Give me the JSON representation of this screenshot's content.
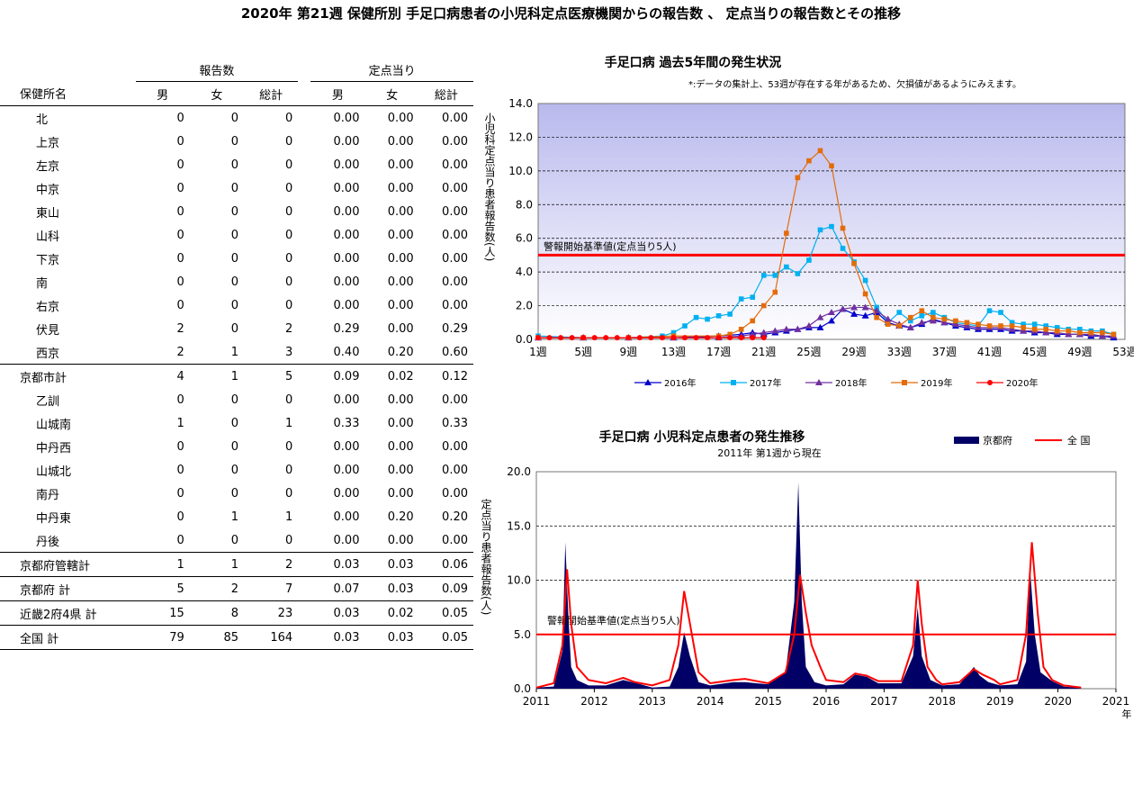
{
  "page_title": "2020年 第21週 保健所別 手足口病患者の小児科定点医療機関からの報告数 、 定点当りの報告数とその推移",
  "table": {
    "group_headers": [
      "報告数",
      "定点当り"
    ],
    "col_headers": [
      "保健所名",
      "男",
      "女",
      "総計",
      "男",
      "女",
      "総計"
    ],
    "rows": [
      {
        "name": "北",
        "kind": "item",
        "cells": [
          "0",
          "0",
          "0",
          "0.00",
          "0.00",
          "0.00"
        ]
      },
      {
        "name": "上京",
        "kind": "item",
        "cells": [
          "0",
          "0",
          "0",
          "0.00",
          "0.00",
          "0.00"
        ]
      },
      {
        "name": "左京",
        "kind": "item",
        "cells": [
          "0",
          "0",
          "0",
          "0.00",
          "0.00",
          "0.00"
        ]
      },
      {
        "name": "中京",
        "kind": "item",
        "cells": [
          "0",
          "0",
          "0",
          "0.00",
          "0.00",
          "0.00"
        ]
      },
      {
        "name": "東山",
        "kind": "item",
        "cells": [
          "0",
          "0",
          "0",
          "0.00",
          "0.00",
          "0.00"
        ]
      },
      {
        "name": "山科",
        "kind": "item",
        "cells": [
          "0",
          "0",
          "0",
          "0.00",
          "0.00",
          "0.00"
        ]
      },
      {
        "name": "下京",
        "kind": "item",
        "cells": [
          "0",
          "0",
          "0",
          "0.00",
          "0.00",
          "0.00"
        ]
      },
      {
        "name": "南",
        "kind": "item",
        "cells": [
          "0",
          "0",
          "0",
          "0.00",
          "0.00",
          "0.00"
        ]
      },
      {
        "name": "右京",
        "kind": "item",
        "cells": [
          "0",
          "0",
          "0",
          "0.00",
          "0.00",
          "0.00"
        ]
      },
      {
        "name": "伏見",
        "kind": "item",
        "cells": [
          "2",
          "0",
          "2",
          "0.29",
          "0.00",
          "0.29"
        ]
      },
      {
        "name": "西京",
        "kind": "item",
        "cells": [
          "2",
          "1",
          "3",
          "0.40",
          "0.20",
          "0.60"
        ]
      },
      {
        "name": "京都市計",
        "kind": "total",
        "cells": [
          "4",
          "1",
          "5",
          "0.09",
          "0.02",
          "0.12"
        ]
      },
      {
        "name": "乙訓",
        "kind": "item",
        "cells": [
          "0",
          "0",
          "0",
          "0.00",
          "0.00",
          "0.00"
        ]
      },
      {
        "name": "山城南",
        "kind": "item",
        "cells": [
          "1",
          "0",
          "1",
          "0.33",
          "0.00",
          "0.33"
        ]
      },
      {
        "name": "中丹西",
        "kind": "item",
        "cells": [
          "0",
          "0",
          "0",
          "0.00",
          "0.00",
          "0.00"
        ]
      },
      {
        "name": "山城北",
        "kind": "item",
        "cells": [
          "0",
          "0",
          "0",
          "0.00",
          "0.00",
          "0.00"
        ]
      },
      {
        "name": "南丹",
        "kind": "item",
        "cells": [
          "0",
          "0",
          "0",
          "0.00",
          "0.00",
          "0.00"
        ]
      },
      {
        "name": "中丹東",
        "kind": "item",
        "cells": [
          "0",
          "1",
          "1",
          "0.00",
          "0.20",
          "0.20"
        ]
      },
      {
        "name": "丹後",
        "kind": "item",
        "cells": [
          "0",
          "0",
          "0",
          "0.00",
          "0.00",
          "0.00"
        ]
      },
      {
        "name": "京都府管轄計",
        "kind": "total",
        "cells": [
          "1",
          "1",
          "2",
          "0.03",
          "0.03",
          "0.06"
        ]
      },
      {
        "name": "京都府  計",
        "kind": "total2",
        "cells": [
          "5",
          "2",
          "7",
          "0.07",
          "0.03",
          "0.09"
        ]
      },
      {
        "name": "近畿2府4県  計",
        "kind": "total2",
        "cells": [
          "15",
          "8",
          "23",
          "0.03",
          "0.02",
          "0.05"
        ]
      },
      {
        "name": "全国  計",
        "kind": "total2",
        "cells": [
          "79",
          "85",
          "164",
          "0.03",
          "0.03",
          "0.05"
        ]
      }
    ]
  },
  "colors": {
    "s2016": "#0000cc",
    "s2017": "#00b0f0",
    "s2018": "#7030a0",
    "s2019": "#e36c09",
    "s2020": "#ff0000",
    "alert": "#ff0000",
    "kyoto_area": "#000066",
    "zenkoku": "#ff0000"
  },
  "chart_data": [
    {
      "type": "line",
      "title": "手足口病 過去5年間の発生状況",
      "note": "*:データの集計上、53週が存在する年があるため、欠損値があるようにみえます。",
      "ylabel": "小児科定点当り患者報告数(人)",
      "ylim": [
        0,
        14
      ],
      "yticks": [
        "0.0",
        "2.0",
        "4.0",
        "6.0",
        "8.0",
        "10.0",
        "12.0",
        "14.0"
      ],
      "xlim": [
        1,
        53
      ],
      "xtick_labels": [
        "1週",
        "5週",
        "9週",
        "13週",
        "17週",
        "21週",
        "25週",
        "29週",
        "33週",
        "37週",
        "41週",
        "45週",
        "49週",
        "53週"
      ],
      "alert_line": 5,
      "alert_label": "警報開始基準値(定点当り5人)",
      "grid": true,
      "legend_position": "bottom",
      "series": [
        {
          "name": "2016年",
          "color_key": "s2016",
          "marker": "triangle",
          "x": [
            1,
            5,
            9,
            13,
            17,
            19,
            20,
            21,
            22,
            23,
            24,
            25,
            26,
            27,
            28,
            29,
            30,
            31,
            32,
            33,
            34,
            35,
            36,
            37,
            38,
            39,
            40,
            41,
            42,
            43,
            44,
            45,
            46,
            47,
            48,
            49,
            50,
            51,
            52
          ],
          "y": [
            0.1,
            0.1,
            0.1,
            0.1,
            0.2,
            0.3,
            0.4,
            0.3,
            0.4,
            0.5,
            0.6,
            0.7,
            0.7,
            1.1,
            1.8,
            1.5,
            1.4,
            1.6,
            1.0,
            0.8,
            0.7,
            0.9,
            1.2,
            1.0,
            0.8,
            0.7,
            0.6,
            0.6,
            0.6,
            0.5,
            0.5,
            0.4,
            0.4,
            0.3,
            0.3,
            0.3,
            0.2,
            0.2,
            0.1
          ]
        },
        {
          "name": "2017年",
          "color_key": "s2017",
          "marker": "square",
          "x": [
            1,
            5,
            9,
            12,
            13,
            14,
            15,
            16,
            17,
            18,
            19,
            20,
            21,
            22,
            23,
            24,
            25,
            26,
            27,
            28,
            29,
            30,
            31,
            32,
            33,
            34,
            35,
            36,
            37,
            38,
            39,
            40,
            41,
            42,
            43,
            44,
            45,
            46,
            47,
            48,
            49,
            50,
            51,
            52
          ],
          "y": [
            0.2,
            0.1,
            0.1,
            0.2,
            0.4,
            0.8,
            1.3,
            1.2,
            1.4,
            1.5,
            2.4,
            2.5,
            3.8,
            3.8,
            4.3,
            3.9,
            4.7,
            6.5,
            6.7,
            5.4,
            4.6,
            3.5,
            1.9,
            1.0,
            1.6,
            1.1,
            1.4,
            1.6,
            1.3,
            1.0,
            0.9,
            0.8,
            1.7,
            1.6,
            1.0,
            0.9,
            0.9,
            0.8,
            0.7,
            0.6,
            0.6,
            0.5,
            0.5,
            0.3
          ]
        },
        {
          "name": "2018年",
          "color_key": "s2018",
          "marker": "triangle",
          "x": [
            1,
            5,
            9,
            13,
            17,
            19,
            20,
            21,
            22,
            23,
            24,
            25,
            26,
            27,
            28,
            29,
            30,
            31,
            32,
            33,
            34,
            35,
            36,
            37,
            38,
            39,
            40,
            41,
            42,
            43,
            44,
            45,
            46,
            47,
            48,
            49,
            50,
            51,
            52
          ],
          "y": [
            0.1,
            0.1,
            0.1,
            0.1,
            0.1,
            0.2,
            0.3,
            0.4,
            0.5,
            0.6,
            0.6,
            0.8,
            1.3,
            1.6,
            1.8,
            1.9,
            1.9,
            1.7,
            1.2,
            0.9,
            0.7,
            1.0,
            1.1,
            1.0,
            0.9,
            0.8,
            0.7,
            0.7,
            0.7,
            0.6,
            0.5,
            0.5,
            0.4,
            0.4,
            0.3,
            0.3,
            0.3,
            0.2,
            0.2
          ]
        },
        {
          "name": "2019年",
          "color_key": "s2019",
          "marker": "square",
          "x": [
            1,
            5,
            9,
            13,
            17,
            18,
            19,
            20,
            21,
            22,
            23,
            24,
            25,
            26,
            27,
            28,
            29,
            30,
            31,
            32,
            33,
            34,
            35,
            36,
            37,
            38,
            39,
            40,
            41,
            42,
            43,
            44,
            45,
            46,
            47,
            48,
            49,
            50,
            51,
            52
          ],
          "y": [
            0.1,
            0.1,
            0.1,
            0.2,
            0.2,
            0.3,
            0.6,
            1.1,
            2.0,
            2.8,
            6.3,
            9.6,
            10.6,
            11.2,
            10.3,
            6.6,
            4.5,
            2.7,
            1.3,
            0.9,
            0.8,
            1.3,
            1.7,
            1.3,
            1.2,
            1.1,
            1.0,
            0.9,
            0.8,
            0.8,
            0.8,
            0.7,
            0.6,
            0.6,
            0.5,
            0.5,
            0.4,
            0.4,
            0.4,
            0.3
          ]
        },
        {
          "name": "2020年",
          "color_key": "s2020",
          "marker": "circle",
          "x": [
            1,
            2,
            3,
            4,
            5,
            6,
            7,
            8,
            9,
            10,
            11,
            12,
            13,
            14,
            15,
            16,
            17,
            18,
            19,
            20,
            21
          ],
          "y": [
            0.1,
            0.1,
            0.1,
            0.1,
            0.1,
            0.1,
            0.1,
            0.1,
            0.1,
            0.1,
            0.1,
            0.1,
            0.1,
            0.1,
            0.1,
            0.1,
            0.1,
            0.1,
            0.1,
            0.1,
            0.1
          ]
        }
      ]
    },
    {
      "type": "area",
      "title": "手足口病 小児科定点患者の発生推移",
      "subtitle": "2011年 第1週から現在",
      "ylabel": "定点当り患者報告数(人)",
      "xlabel": "年",
      "ylim": [
        0,
        20
      ],
      "yticks": [
        "0.0",
        "5.0",
        "10.0",
        "15.0",
        "20.0"
      ],
      "xlim": [
        2011,
        2021
      ],
      "xtick_labels": [
        "2011",
        "2012",
        "2013",
        "2014",
        "2015",
        "2016",
        "2017",
        "2018",
        "2019",
        "2020",
        "2021"
      ],
      "alert_line": 5,
      "alert_label": "警報開始基準値(定点当り5人)",
      "grid": true,
      "legend_position": "top-right",
      "series": [
        {
          "name": "京都府",
          "color_key": "kyoto_area",
          "kind": "area",
          "x": [
            2011.0,
            2011.3,
            2011.45,
            2011.5,
            2011.55,
            2011.6,
            2011.7,
            2011.9,
            2012.2,
            2012.5,
            2012.8,
            2013.0,
            2013.3,
            2013.45,
            2013.55,
            2013.65,
            2013.8,
            2014.0,
            2014.4,
            2014.6,
            2014.8,
            2015.0,
            2015.3,
            2015.45,
            2015.52,
            2015.58,
            2015.65,
            2015.8,
            2016.0,
            2016.3,
            2016.5,
            2016.7,
            2016.9,
            2017.3,
            2017.5,
            2017.58,
            2017.65,
            2017.8,
            2018.0,
            2018.3,
            2018.55,
            2018.65,
            2018.8,
            2019.0,
            2019.3,
            2019.45,
            2019.52,
            2019.6,
            2019.7,
            2019.9,
            2020.1,
            2020.4
          ],
          "y": [
            0.1,
            0.2,
            3.5,
            13.5,
            7,
            2,
            0.8,
            0.3,
            0.3,
            0.8,
            0.4,
            0.1,
            0.2,
            2,
            5.2,
            3,
            0.6,
            0.3,
            0.6,
            0.6,
            0.5,
            0.4,
            1.5,
            8,
            19,
            8,
            2,
            0.6,
            0.3,
            0.4,
            1.3,
            1.1,
            0.5,
            0.5,
            3,
            7.5,
            3,
            0.8,
            0.3,
            0.4,
            2,
            1.2,
            0.6,
            0.3,
            0.4,
            2.5,
            11,
            5,
            1.5,
            0.7,
            0.2,
            0.05
          ]
        },
        {
          "name": "全 国",
          "color_key": "zenkoku",
          "kind": "line",
          "x": [
            2011.0,
            2011.3,
            2011.45,
            2011.53,
            2011.6,
            2011.7,
            2011.9,
            2012.2,
            2012.5,
            2012.7,
            2013.0,
            2013.3,
            2013.45,
            2013.55,
            2013.65,
            2013.8,
            2014.0,
            2014.4,
            2014.6,
            2014.8,
            2015.0,
            2015.3,
            2015.45,
            2015.55,
            2015.65,
            2015.75,
            2015.9,
            2016.0,
            2016.3,
            2016.5,
            2016.7,
            2016.9,
            2017.3,
            2017.5,
            2017.58,
            2017.65,
            2017.75,
            2017.9,
            2018.0,
            2018.3,
            2018.55,
            2018.7,
            2018.9,
            2019.0,
            2019.3,
            2019.45,
            2019.55,
            2019.65,
            2019.75,
            2019.9,
            2020.1,
            2020.4
          ],
          "y": [
            0.1,
            0.5,
            4,
            11,
            6,
            2,
            0.8,
            0.5,
            1,
            0.6,
            0.3,
            0.8,
            4,
            9,
            6,
            1.5,
            0.5,
            0.8,
            0.9,
            0.7,
            0.5,
            1.5,
            5,
            10.5,
            7,
            4,
            2,
            0.8,
            0.6,
            1.4,
            1.2,
            0.7,
            0.7,
            4,
            10,
            6,
            2,
            0.8,
            0.4,
            0.6,
            1.8,
            1.3,
            0.8,
            0.4,
            0.8,
            5,
            13.5,
            7,
            2,
            0.8,
            0.3,
            0.1
          ]
        }
      ]
    }
  ]
}
